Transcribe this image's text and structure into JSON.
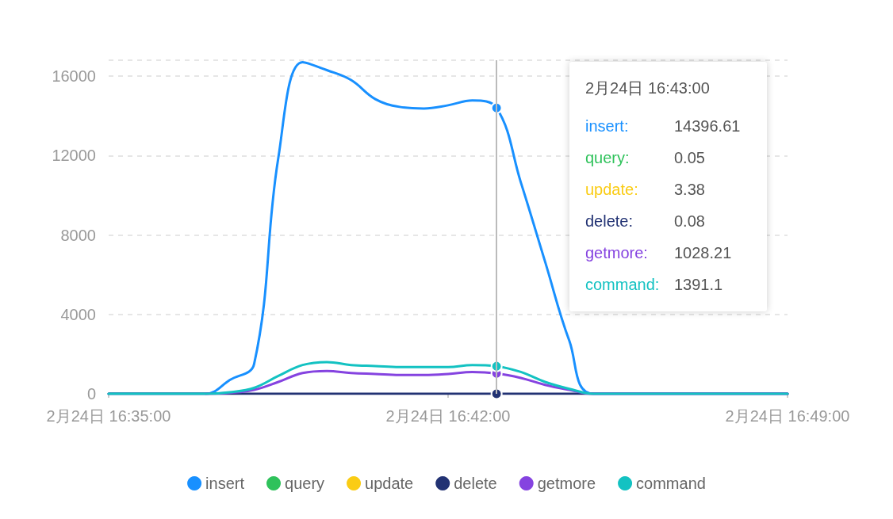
{
  "chart_data": {
    "type": "line",
    "x": [
      "--02-24T16:35",
      "--02-24T16:36",
      "--02-24T16:37",
      "--02-24T16:37:30",
      "--02-24T16:38",
      "--02-24T16:38:30",
      "--02-24T16:39",
      "--02-24T16:39:30",
      "--02-24T16:40",
      "--02-24T16:40:30",
      "--02-24T16:41",
      "--02-24T16:41:30",
      "--02-24T16:42",
      "--02-24T16:42:30",
      "--02-24T16:43",
      "--02-24T16:43:30",
      "--02-24T16:44",
      "--02-24T16:44:30",
      "--02-24T16:45",
      "--02-24T16:49"
    ],
    "series": [
      {
        "name": "insert",
        "color": "#1890ff",
        "values": [
          0,
          0,
          0,
          700,
          1500,
          11900,
          16700,
          16300,
          15800,
          14840,
          14450,
          14370,
          14530,
          14770,
          14396.61,
          10650,
          6660,
          2670,
          0,
          0
        ]
      },
      {
        "name": "query",
        "color": "#2fc25b",
        "values": [
          null,
          null,
          null,
          null,
          null,
          null,
          null,
          null,
          null,
          null,
          null,
          null,
          null,
          null,
          null,
          null,
          null,
          null,
          null,
          null
        ]
      },
      {
        "name": "update",
        "color": "#facc14",
        "values": [
          null,
          null,
          null,
          null,
          null,
          null,
          null,
          null,
          null,
          null,
          null,
          null,
          null,
          null,
          null,
          null,
          null,
          null,
          null,
          null
        ]
      },
      {
        "name": "delete",
        "color": "#223273",
        "values": [
          0,
          0,
          0,
          0,
          0,
          0,
          0,
          0,
          0,
          0,
          0,
          0,
          0,
          0,
          0.08,
          0,
          0,
          0,
          0,
          0
        ]
      },
      {
        "name": "getmore",
        "color": "#8543e0",
        "values": [
          null,
          null,
          0,
          50,
          200,
          600,
          1050,
          1150,
          1050,
          1000,
          950,
          950,
          1000,
          1100,
          1028.21,
          800,
          450,
          200,
          0,
          0
        ]
      },
      {
        "name": "command",
        "color": "#13c2c2",
        "values": [
          0,
          0,
          0,
          80,
          300,
          900,
          1450,
          1600,
          1450,
          1400,
          1350,
          1350,
          1350,
          1450,
          1391.1,
          1100,
          600,
          250,
          0,
          0
        ]
      }
    ],
    "xlim": [
      "--02-24T16:35",
      "--02-24T16:49"
    ],
    "xticks": [
      {
        "value": "--02-24T16:35",
        "label": "2月24日 16:35:00"
      },
      {
        "value": "--02-24T16:42",
        "label": "2月24日 16:42:00"
      },
      {
        "value": "--02-24T16:49",
        "label": "2月24日 16:49:00"
      }
    ],
    "ylim": [
      0,
      16800
    ],
    "yticks": [
      0,
      4000,
      8000,
      12000,
      16000,
      {
        "value": 16800,
        "label": null
      }
    ],
    "grid": "y",
    "legend": "bottom",
    "marker": "none",
    "line_style": "solid",
    "ref_lines": [
      {
        "axis": "x",
        "value": "--02-24T16:43",
        "color": "#bbbbbb"
      }
    ],
    "annotations": [
      "2月24日 16:43:00",
      "insert:",
      "14396.61",
      "query:",
      "0.05",
      "update:",
      "3.38",
      "delete:",
      "0.08",
      "getmore:",
      "1028.21",
      "command:",
      "1391.1"
    ]
  }
}
